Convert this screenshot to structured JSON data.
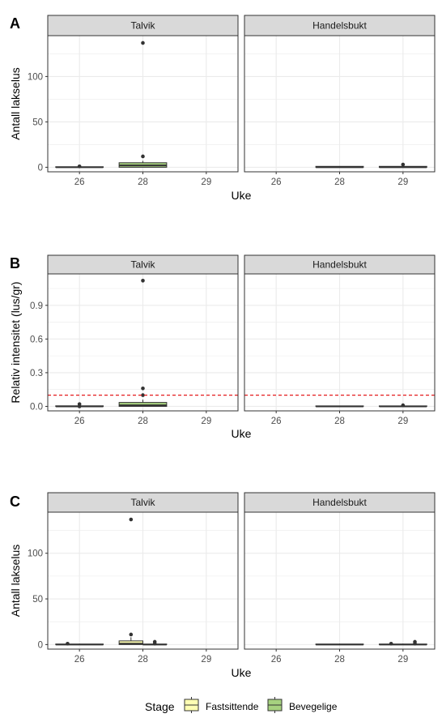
{
  "colors": {
    "fastsittende": "#FFFFB3",
    "bevegelige": "#A6D17F",
    "outlier": "#333333",
    "strip_bg": "#D9D9D9",
    "grid": "#EBEBEB",
    "reference_line": "#E41A1C"
  },
  "legend": {
    "title": "Stage",
    "items": [
      "Fastsittende",
      "Bevegelige"
    ]
  },
  "chart_data": [
    {
      "type": "box",
      "panel_label": "A",
      "facets": [
        "Talvik",
        "Handelsbukt"
      ],
      "xlabel": "Uke",
      "ylabel": "Antall lakselus",
      "categories": [
        "26",
        "28",
        "29"
      ],
      "ylim": [
        -5,
        145
      ],
      "yticks": [
        0,
        50,
        100
      ],
      "grid": true,
      "boxes": [
        {
          "facet": "Talvik",
          "x": "26",
          "series": "Fastsittende",
          "q1": 0,
          "median": 0,
          "q3": 0,
          "min": 0,
          "max": 0,
          "outliers": [
            1
          ]
        },
        {
          "facet": "Talvik",
          "x": "28",
          "series": "Bevegelige",
          "q1": 0,
          "median": 2,
          "q3": 5,
          "min": 0,
          "max": 7,
          "outliers": [
            12,
            137
          ]
        },
        {
          "facet": "Handelsbukt",
          "x": "28",
          "series": "Fastsittende",
          "q1": 0,
          "median": 0,
          "q3": 1,
          "min": 0,
          "max": 1,
          "outliers": []
        },
        {
          "facet": "Handelsbukt",
          "x": "29",
          "series": "Fastsittende",
          "q1": 0,
          "median": 0,
          "q3": 1,
          "min": 0,
          "max": 1,
          "outliers": [
            3
          ]
        }
      ]
    },
    {
      "type": "box",
      "panel_label": "B",
      "facets": [
        "Talvik",
        "Handelsbukt"
      ],
      "xlabel": "Uke",
      "ylabel": "Relativ intensitet (lus/gr)",
      "categories": [
        "26",
        "28",
        "29"
      ],
      "ylim": [
        -0.04,
        1.18
      ],
      "yticks": [
        0.0,
        0.3,
        0.6,
        0.9
      ],
      "yticklabels": [
        "0.0",
        "0.3",
        "0.6",
        "0.9"
      ],
      "grid": true,
      "reference_line": 0.1,
      "boxes": [
        {
          "facet": "Talvik",
          "x": "26",
          "series": "Fastsittende",
          "q1": 0,
          "median": 0,
          "q3": 0.005,
          "min": 0,
          "max": 0.01,
          "outliers": [
            0.0,
            0.02
          ]
        },
        {
          "facet": "Talvik",
          "x": "28",
          "series": "Bevegelige",
          "q1": 0,
          "median": 0.01,
          "q3": 0.035,
          "min": 0,
          "max": 0.06,
          "outliers": [
            0.1,
            0.16,
            1.12
          ]
        },
        {
          "facet": "Handelsbukt",
          "x": "28",
          "series": "Fastsittende",
          "q1": 0,
          "median": 0,
          "q3": 0.002,
          "min": 0,
          "max": 0.003,
          "outliers": []
        },
        {
          "facet": "Handelsbukt",
          "x": "29",
          "series": "Fastsittende",
          "q1": 0,
          "median": 0,
          "q3": 0.002,
          "min": 0,
          "max": 0.003,
          "outliers": [
            0.01
          ]
        }
      ]
    },
    {
      "type": "box",
      "panel_label": "C",
      "facets": [
        "Talvik",
        "Handelsbukt"
      ],
      "xlabel": "Uke",
      "ylabel": "Antall lakselus",
      "categories": [
        "26",
        "28",
        "29"
      ],
      "ylim": [
        -5,
        145
      ],
      "yticks": [
        0,
        50,
        100
      ],
      "grid": true,
      "dodge": true,
      "boxes": [
        {
          "facet": "Talvik",
          "x": "26",
          "series": "Fastsittende",
          "q1": 0,
          "median": 0,
          "q3": 0,
          "min": 0,
          "max": 0,
          "outliers": [
            1
          ]
        },
        {
          "facet": "Talvik",
          "x": "26",
          "series": "Bevegelige",
          "q1": 0,
          "median": 0,
          "q3": 0,
          "min": 0,
          "max": 0,
          "outliers": []
        },
        {
          "facet": "Talvik",
          "x": "28",
          "series": "Fastsittende",
          "q1": 0,
          "median": 1,
          "q3": 4,
          "min": 0,
          "max": 8,
          "outliers": [
            11,
            137
          ]
        },
        {
          "facet": "Talvik",
          "x": "28",
          "series": "Bevegelige",
          "q1": 0,
          "median": 0,
          "q3": 0,
          "min": 0,
          "max": 0,
          "outliers": [
            1,
            3
          ]
        },
        {
          "facet": "Handelsbukt",
          "x": "28",
          "series": "Fastsittende",
          "q1": 0,
          "median": 0,
          "q3": 0,
          "min": 0,
          "max": 0,
          "outliers": []
        },
        {
          "facet": "Handelsbukt",
          "x": "28",
          "series": "Bevegelige",
          "q1": 0,
          "median": 0,
          "q3": 0,
          "min": 0,
          "max": 0,
          "outliers": []
        },
        {
          "facet": "Handelsbukt",
          "x": "29",
          "series": "Fastsittende",
          "q1": 0,
          "median": 0,
          "q3": 0,
          "min": 0,
          "max": 0,
          "outliers": [
            1
          ]
        },
        {
          "facet": "Handelsbukt",
          "x": "29",
          "series": "Bevegelige",
          "q1": 0,
          "median": 0,
          "q3": 0,
          "min": 0,
          "max": 0,
          "outliers": [
            1,
            3
          ]
        }
      ]
    }
  ]
}
